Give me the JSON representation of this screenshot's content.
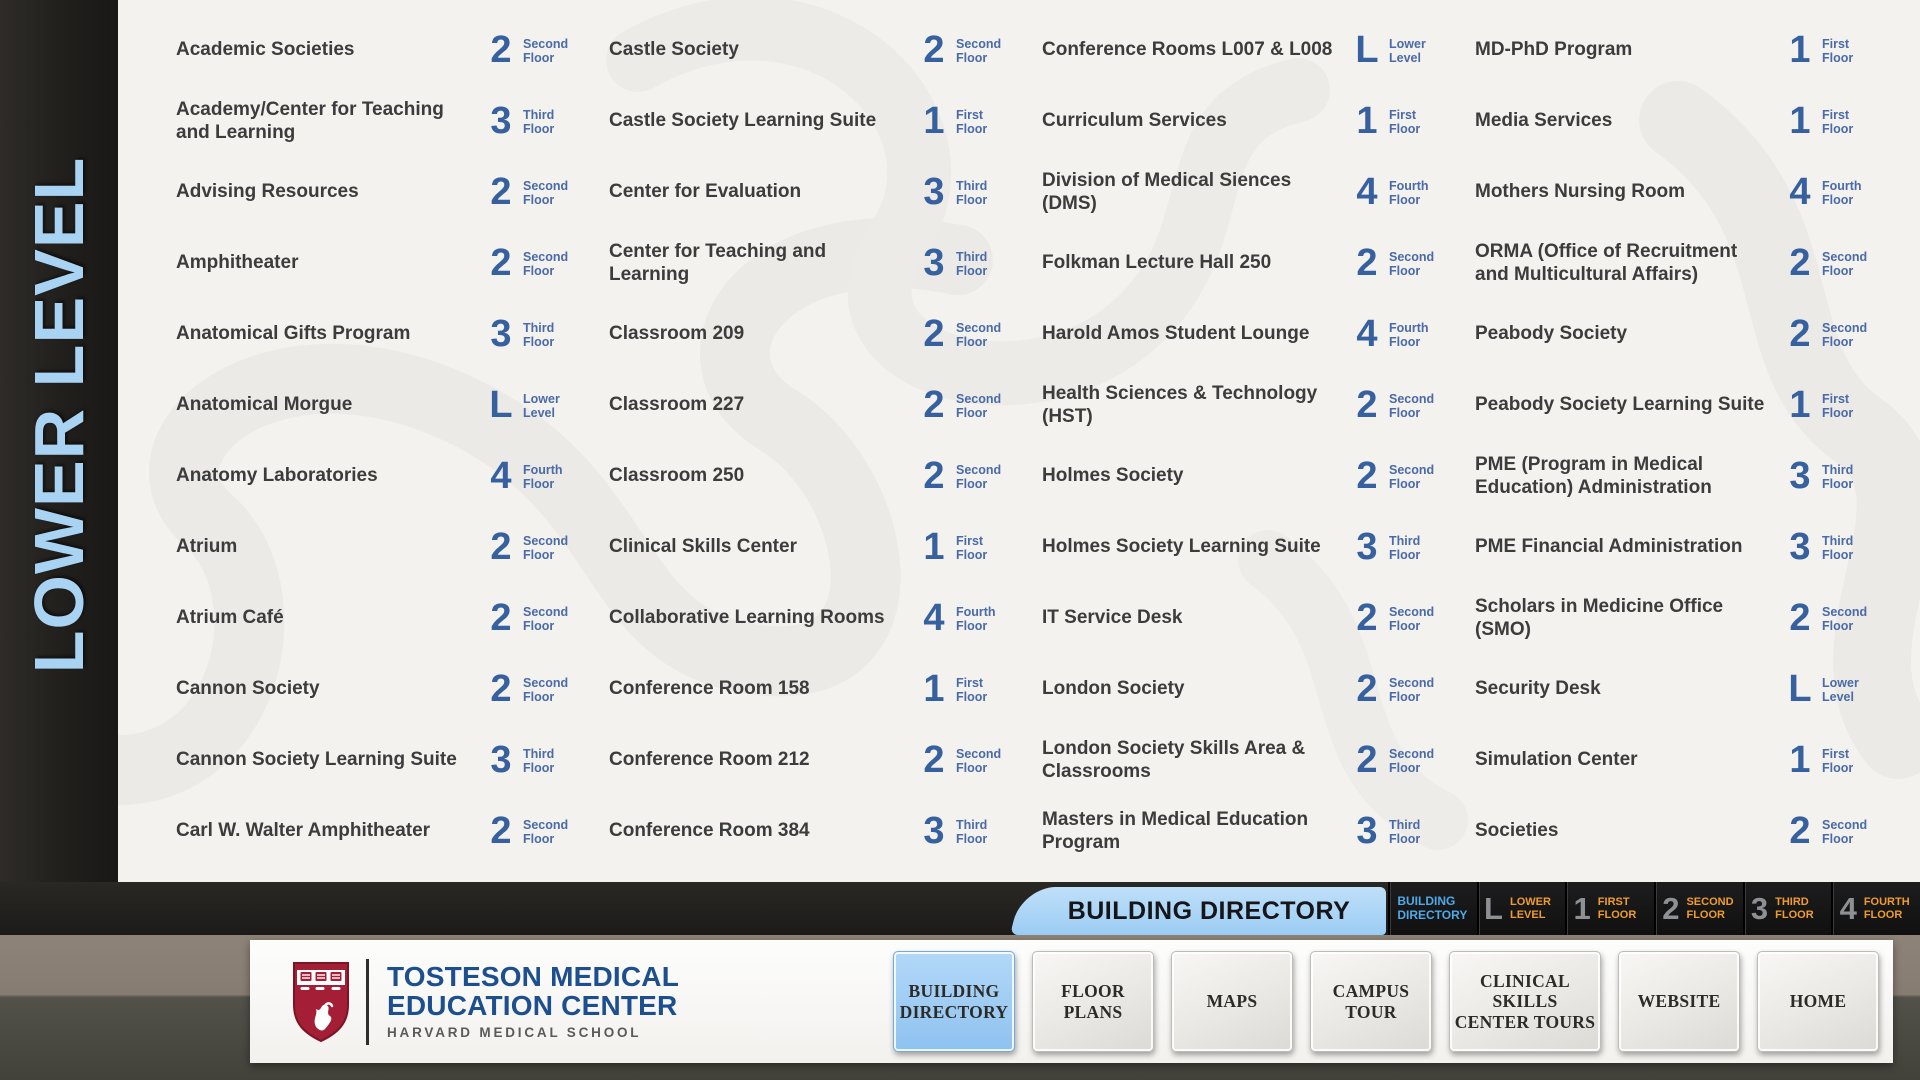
{
  "sidebar": {
    "level_label": "LOWER LEVEL"
  },
  "directory": {
    "columns": [
      {
        "entries": [
          {
            "name": "Academic Societies",
            "floor": "2",
            "floor_label": "Second Floor"
          },
          {
            "name": "Academy/Center for Teaching and Learning",
            "floor": "3",
            "floor_label": "Third Floor"
          },
          {
            "name": "Advising Resources",
            "floor": "2",
            "floor_label": "Second Floor"
          },
          {
            "name": "Amphitheater",
            "floor": "2",
            "floor_label": "Second Floor"
          },
          {
            "name": "Anatomical Gifts Program",
            "floor": "3",
            "floor_label": "Third Floor"
          },
          {
            "name": "Anatomical Morgue",
            "floor": "L",
            "floor_label": "Lower Level"
          },
          {
            "name": "Anatomy Laboratories",
            "floor": "4",
            "floor_label": "Fourth Floor"
          },
          {
            "name": "Atrium",
            "floor": "2",
            "floor_label": "Second Floor"
          },
          {
            "name": "Atrium Café",
            "floor": "2",
            "floor_label": "Second Floor"
          },
          {
            "name": "Cannon Society",
            "floor": "2",
            "floor_label": "Second Floor"
          },
          {
            "name": "Cannon Society Learning Suite",
            "floor": "3",
            "floor_label": "Third Floor"
          },
          {
            "name": "Carl W. Walter Amphitheater",
            "floor": "2",
            "floor_label": "Second Floor"
          }
        ]
      },
      {
        "entries": [
          {
            "name": "Castle Society",
            "floor": "2",
            "floor_label": "Second Floor"
          },
          {
            "name": "Castle Society Learning Suite",
            "floor": "1",
            "floor_label": "First Floor"
          },
          {
            "name": "Center for Evaluation",
            "floor": "3",
            "floor_label": "Third Floor"
          },
          {
            "name": "Center for Teaching and Learning",
            "floor": "3",
            "floor_label": "Third Floor"
          },
          {
            "name": "Classroom 209",
            "floor": "2",
            "floor_label": "Second Floor"
          },
          {
            "name": "Classroom 227",
            "floor": "2",
            "floor_label": "Second Floor"
          },
          {
            "name": "Classroom 250",
            "floor": "2",
            "floor_label": "Second Floor"
          },
          {
            "name": "Clinical Skills Center",
            "floor": "1",
            "floor_label": "First Floor"
          },
          {
            "name": "Collaborative Learning Rooms",
            "floor": "4",
            "floor_label": "Fourth Floor"
          },
          {
            "name": "Conference Room 158",
            "floor": "1",
            "floor_label": "First Floor"
          },
          {
            "name": "Conference Room 212",
            "floor": "2",
            "floor_label": "Second Floor"
          },
          {
            "name": "Conference Room 384",
            "floor": "3",
            "floor_label": "Third Floor"
          }
        ]
      },
      {
        "entries": [
          {
            "name": "Conference Rooms L007 & L008",
            "floor": "L",
            "floor_label": "Lower Level"
          },
          {
            "name": "Curriculum Services",
            "floor": "1",
            "floor_label": "First Floor"
          },
          {
            "name": "Division of Medical Siences (DMS)",
            "floor": "4",
            "floor_label": "Fourth Floor"
          },
          {
            "name": "Folkman Lecture Hall 250",
            "floor": "2",
            "floor_label": "Second Floor"
          },
          {
            "name": "Harold Amos Student Lounge",
            "floor": "4",
            "floor_label": "Fourth Floor"
          },
          {
            "name": "Health Sciences & Technology (HST)",
            "floor": "2",
            "floor_label": "Second Floor"
          },
          {
            "name": "Holmes Society",
            "floor": "2",
            "floor_label": "Second Floor"
          },
          {
            "name": "Holmes Society Learning Suite",
            "floor": "3",
            "floor_label": "Third Floor"
          },
          {
            "name": "IT Service Desk",
            "floor": "2",
            "floor_label": "Second Floor"
          },
          {
            "name": "London Society",
            "floor": "2",
            "floor_label": "Second Floor"
          },
          {
            "name": "London Society Skills Area & Classrooms",
            "floor": "2",
            "floor_label": "Second Floor"
          },
          {
            "name": "Masters in Medical Education Program",
            "floor": "3",
            "floor_label": "Third Floor"
          }
        ]
      },
      {
        "entries": [
          {
            "name": "MD-PhD Program",
            "floor": "1",
            "floor_label": "First Floor"
          },
          {
            "name": "Media Services",
            "floor": "1",
            "floor_label": "First Floor"
          },
          {
            "name": "Mothers Nursing Room",
            "floor": "4",
            "floor_label": "Fourth Floor"
          },
          {
            "name": "ORMA (Office of Recruitment and Multicultural Affairs)",
            "floor": "2",
            "floor_label": "Second Floor"
          },
          {
            "name": "Peabody Society",
            "floor": "2",
            "floor_label": "Second Floor"
          },
          {
            "name": "Peabody Society Learning Suite",
            "floor": "1",
            "floor_label": "First Floor"
          },
          {
            "name": "PME (Program in Medical Education) Administration",
            "floor": "3",
            "floor_label": "Third Floor"
          },
          {
            "name": "PME Financial Administration",
            "floor": "3",
            "floor_label": "Third Floor"
          },
          {
            "name": "Scholars in Medicine Office (SMO)",
            "floor": "2",
            "floor_label": "Second Floor"
          },
          {
            "name": "Security Desk",
            "floor": "L",
            "floor_label": "Lower Level"
          },
          {
            "name": "Simulation Center",
            "floor": "1",
            "floor_label": "First Floor"
          },
          {
            "name": "Societies",
            "floor": "2",
            "floor_label": "Second Floor"
          }
        ]
      }
    ]
  },
  "tab_bar": {
    "active_tab": "BUILDING DIRECTORY",
    "nav": [
      {
        "num": "",
        "label": "BUILDING DIRECTORY",
        "style": "blue"
      },
      {
        "num": "L",
        "label": "LOWER LEVEL"
      },
      {
        "num": "1",
        "label": "FIRST FLOOR"
      },
      {
        "num": "2",
        "label": "SECOND FLOOR"
      },
      {
        "num": "3",
        "label": "THIRD FLOOR"
      },
      {
        "num": "4",
        "label": "FOURTH FLOOR"
      }
    ]
  },
  "footer": {
    "logo": {
      "title_line1": "TOSTESON MEDICAL",
      "title_line2": "EDUCATION CENTER",
      "subtitle": "HARVARD MEDICAL SCHOOL"
    },
    "buttons": [
      {
        "label": "BUILDING DIRECTORY",
        "active": true
      },
      {
        "label": "FLOOR PLANS",
        "active": false
      },
      {
        "label": "MAPS",
        "active": false
      },
      {
        "label": "CAMPUS TOUR",
        "active": false
      },
      {
        "label": "CLINICAL SKILLS CENTER TOURS",
        "active": false,
        "wide": true
      },
      {
        "label": "WEBSITE",
        "active": false
      },
      {
        "label": "HOME",
        "active": false
      }
    ]
  },
  "colors": {
    "badge_blue": "#37609f",
    "sidebar_blue": "#a9d3f2",
    "nav_orange": "#f09c2d",
    "nav_blue": "#4fa8e8",
    "harvard_crimson": "#a41e35",
    "logo_blue": "#1d4f8f"
  }
}
